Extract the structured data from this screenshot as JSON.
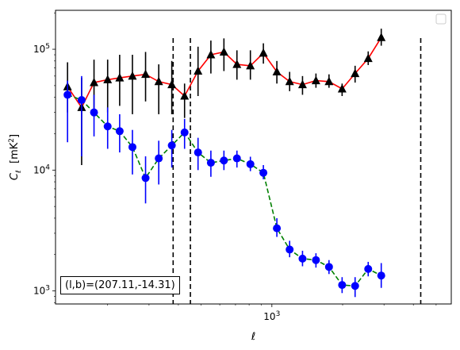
{
  "chart_data": {
    "type": "line",
    "xscale": "log",
    "yscale": "log",
    "xlim": [
      120,
      5800
    ],
    "ylim": [
      780,
      210000
    ],
    "xlabel": "ℓ",
    "ylabel": "C_ℓ [mK²]",
    "xticks": [
      {
        "value": 1000,
        "base": "10",
        "exp": "3"
      }
    ],
    "yticks": [
      {
        "value": 1000,
        "base": "10",
        "exp": "3"
      },
      {
        "value": 10000,
        "base": "10",
        "exp": "4"
      },
      {
        "value": 100000,
        "base": "10",
        "exp": "5"
      }
    ],
    "vlines": [
      380,
      450,
      4300
    ],
    "annotation": "(l,b)=(207.11,-14.31)",
    "legend": {
      "position": "top-right",
      "entries": []
    },
    "series": [
      {
        "color": "#ff0000",
        "linestyle": "solid",
        "marker": "triangle",
        "marker_color": "#000000",
        "errorbar_color": "#000000",
        "points": [
          {
            "x": 135,
            "y": 49000,
            "lo": 30000,
            "hi": 78000
          },
          {
            "x": 155,
            "y": 33000,
            "lo": 11000,
            "hi": 58000
          },
          {
            "x": 175,
            "y": 53000,
            "lo": 30000,
            "hi": 82000
          },
          {
            "x": 200,
            "y": 56000,
            "lo": 30000,
            "hi": 82000
          },
          {
            "x": 225,
            "y": 58000,
            "lo": 34000,
            "hi": 90000
          },
          {
            "x": 255,
            "y": 60000,
            "lo": 29000,
            "hi": 90000
          },
          {
            "x": 290,
            "y": 62000,
            "lo": 37000,
            "hi": 95000
          },
          {
            "x": 330,
            "y": 54000,
            "lo": 29000,
            "hi": 75000
          },
          {
            "x": 375,
            "y": 51000,
            "lo": 29000,
            "hi": 80000
          },
          {
            "x": 425,
            "y": 41000,
            "lo": 27000,
            "hi": 52000
          },
          {
            "x": 485,
            "y": 66000,
            "lo": 41000,
            "hi": 105000
          },
          {
            "x": 550,
            "y": 90000,
            "lo": 63000,
            "hi": 118000
          },
          {
            "x": 625,
            "y": 95000,
            "lo": 66000,
            "hi": 123000
          },
          {
            "x": 710,
            "y": 75000,
            "lo": 56000,
            "hi": 98000
          },
          {
            "x": 810,
            "y": 73000,
            "lo": 56000,
            "hi": 98000
          },
          {
            "x": 920,
            "y": 93000,
            "lo": 76000,
            "hi": 112000
          },
          {
            "x": 1050,
            "y": 65000,
            "lo": 52000,
            "hi": 80000
          },
          {
            "x": 1190,
            "y": 54000,
            "lo": 45000,
            "hi": 65000
          },
          {
            "x": 1350,
            "y": 51000,
            "lo": 42000,
            "hi": 60000
          },
          {
            "x": 1540,
            "y": 55000,
            "lo": 48000,
            "hi": 63000
          },
          {
            "x": 1750,
            "y": 54000,
            "lo": 48000,
            "hi": 62000
          },
          {
            "x": 1990,
            "y": 47000,
            "lo": 41000,
            "hi": 52000
          },
          {
            "x": 2260,
            "y": 63000,
            "lo": 53000,
            "hi": 73000
          },
          {
            "x": 2570,
            "y": 84000,
            "lo": 74000,
            "hi": 96000
          },
          {
            "x": 2920,
            "y": 125000,
            "lo": 107000,
            "hi": 148000
          }
        ]
      },
      {
        "color": "#008000",
        "linestyle": "dashed",
        "marker": "circle",
        "marker_color": "#0000ff",
        "errorbar_color": "#0000ff",
        "points": [
          {
            "x": 135,
            "y": 42000,
            "lo": 17000,
            "hi": 55000
          },
          {
            "x": 155,
            "y": 38000,
            "lo": 13000,
            "hi": 60000
          },
          {
            "x": 175,
            "y": 30000,
            "lo": 19000,
            "hi": 42000
          },
          {
            "x": 200,
            "y": 23000,
            "lo": 15000,
            "hi": 33000
          },
          {
            "x": 225,
            "y": 21000,
            "lo": 14000,
            "hi": 29000
          },
          {
            "x": 255,
            "y": 15500,
            "lo": 9200,
            "hi": 21500
          },
          {
            "x": 290,
            "y": 8600,
            "lo": 5300,
            "hi": 13000
          },
          {
            "x": 330,
            "y": 12500,
            "lo": 7600,
            "hi": 17500
          },
          {
            "x": 375,
            "y": 16000,
            "lo": 10500,
            "hi": 21500
          },
          {
            "x": 425,
            "y": 20500,
            "lo": 15000,
            "hi": 26500
          },
          {
            "x": 485,
            "y": 14000,
            "lo": 10000,
            "hi": 18500
          },
          {
            "x": 550,
            "y": 11500,
            "lo": 8800,
            "hi": 14500
          },
          {
            "x": 625,
            "y": 12000,
            "lo": 10000,
            "hi": 14500
          },
          {
            "x": 710,
            "y": 12500,
            "lo": 10500,
            "hi": 14500
          },
          {
            "x": 810,
            "y": 11200,
            "lo": 9800,
            "hi": 12900
          },
          {
            "x": 920,
            "y": 9500,
            "lo": 8400,
            "hi": 11000
          },
          {
            "x": 1050,
            "y": 3300,
            "lo": 2800,
            "hi": 4000
          },
          {
            "x": 1190,
            "y": 2200,
            "lo": 1900,
            "hi": 2600
          },
          {
            "x": 1350,
            "y": 1850,
            "lo": 1600,
            "hi": 2150
          },
          {
            "x": 1540,
            "y": 1800,
            "lo": 1560,
            "hi": 2050
          },
          {
            "x": 1750,
            "y": 1580,
            "lo": 1380,
            "hi": 1800
          },
          {
            "x": 1990,
            "y": 1120,
            "lo": 960,
            "hi": 1300
          },
          {
            "x": 2260,
            "y": 1100,
            "lo": 890,
            "hi": 1300
          },
          {
            "x": 2570,
            "y": 1520,
            "lo": 1320,
            "hi": 1740
          },
          {
            "x": 2920,
            "y": 1340,
            "lo": 1060,
            "hi": 1700
          }
        ]
      }
    ]
  }
}
